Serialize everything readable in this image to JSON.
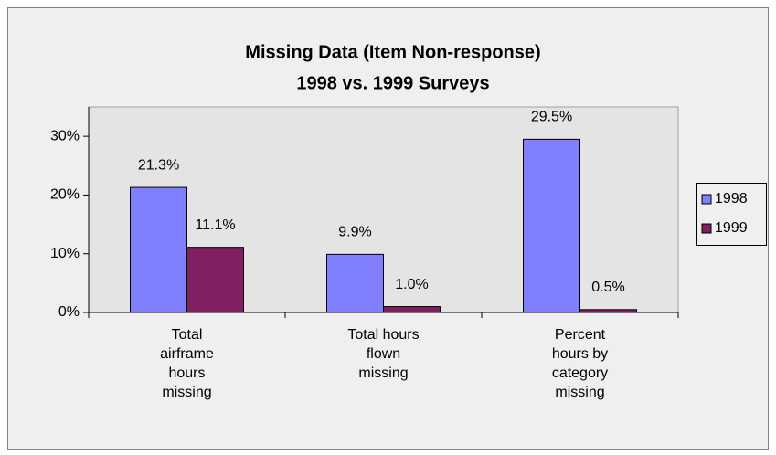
{
  "chart_data": {
    "type": "bar",
    "title": [
      "Missing Data (Item Non-response)",
      "1998 vs. 1999 Surveys"
    ],
    "categories": [
      "Total airframe hours missing",
      "Total hours flown missing",
      "Percent hours by category missing"
    ],
    "series": [
      {
        "name": "1998",
        "color": "#8080ff",
        "values": [
          21.3,
          9.9,
          29.5
        ],
        "value_labels": [
          "21.3%",
          "9.9%",
          "29.5%"
        ]
      },
      {
        "name": "1999",
        "color": "#802060",
        "values": [
          11.1,
          1.0,
          0.5
        ],
        "value_labels": [
          "11.1%",
          "1.0%",
          "0.5%"
        ]
      }
    ],
    "ylim": [
      0,
      35
    ],
    "yticks": [
      {
        "value": 0,
        "label": "0%"
      },
      {
        "value": 10,
        "label": "10%"
      },
      {
        "value": 20,
        "label": "20%"
      },
      {
        "value": 30,
        "label": "30%"
      }
    ],
    "grid": false,
    "legend": "right"
  }
}
